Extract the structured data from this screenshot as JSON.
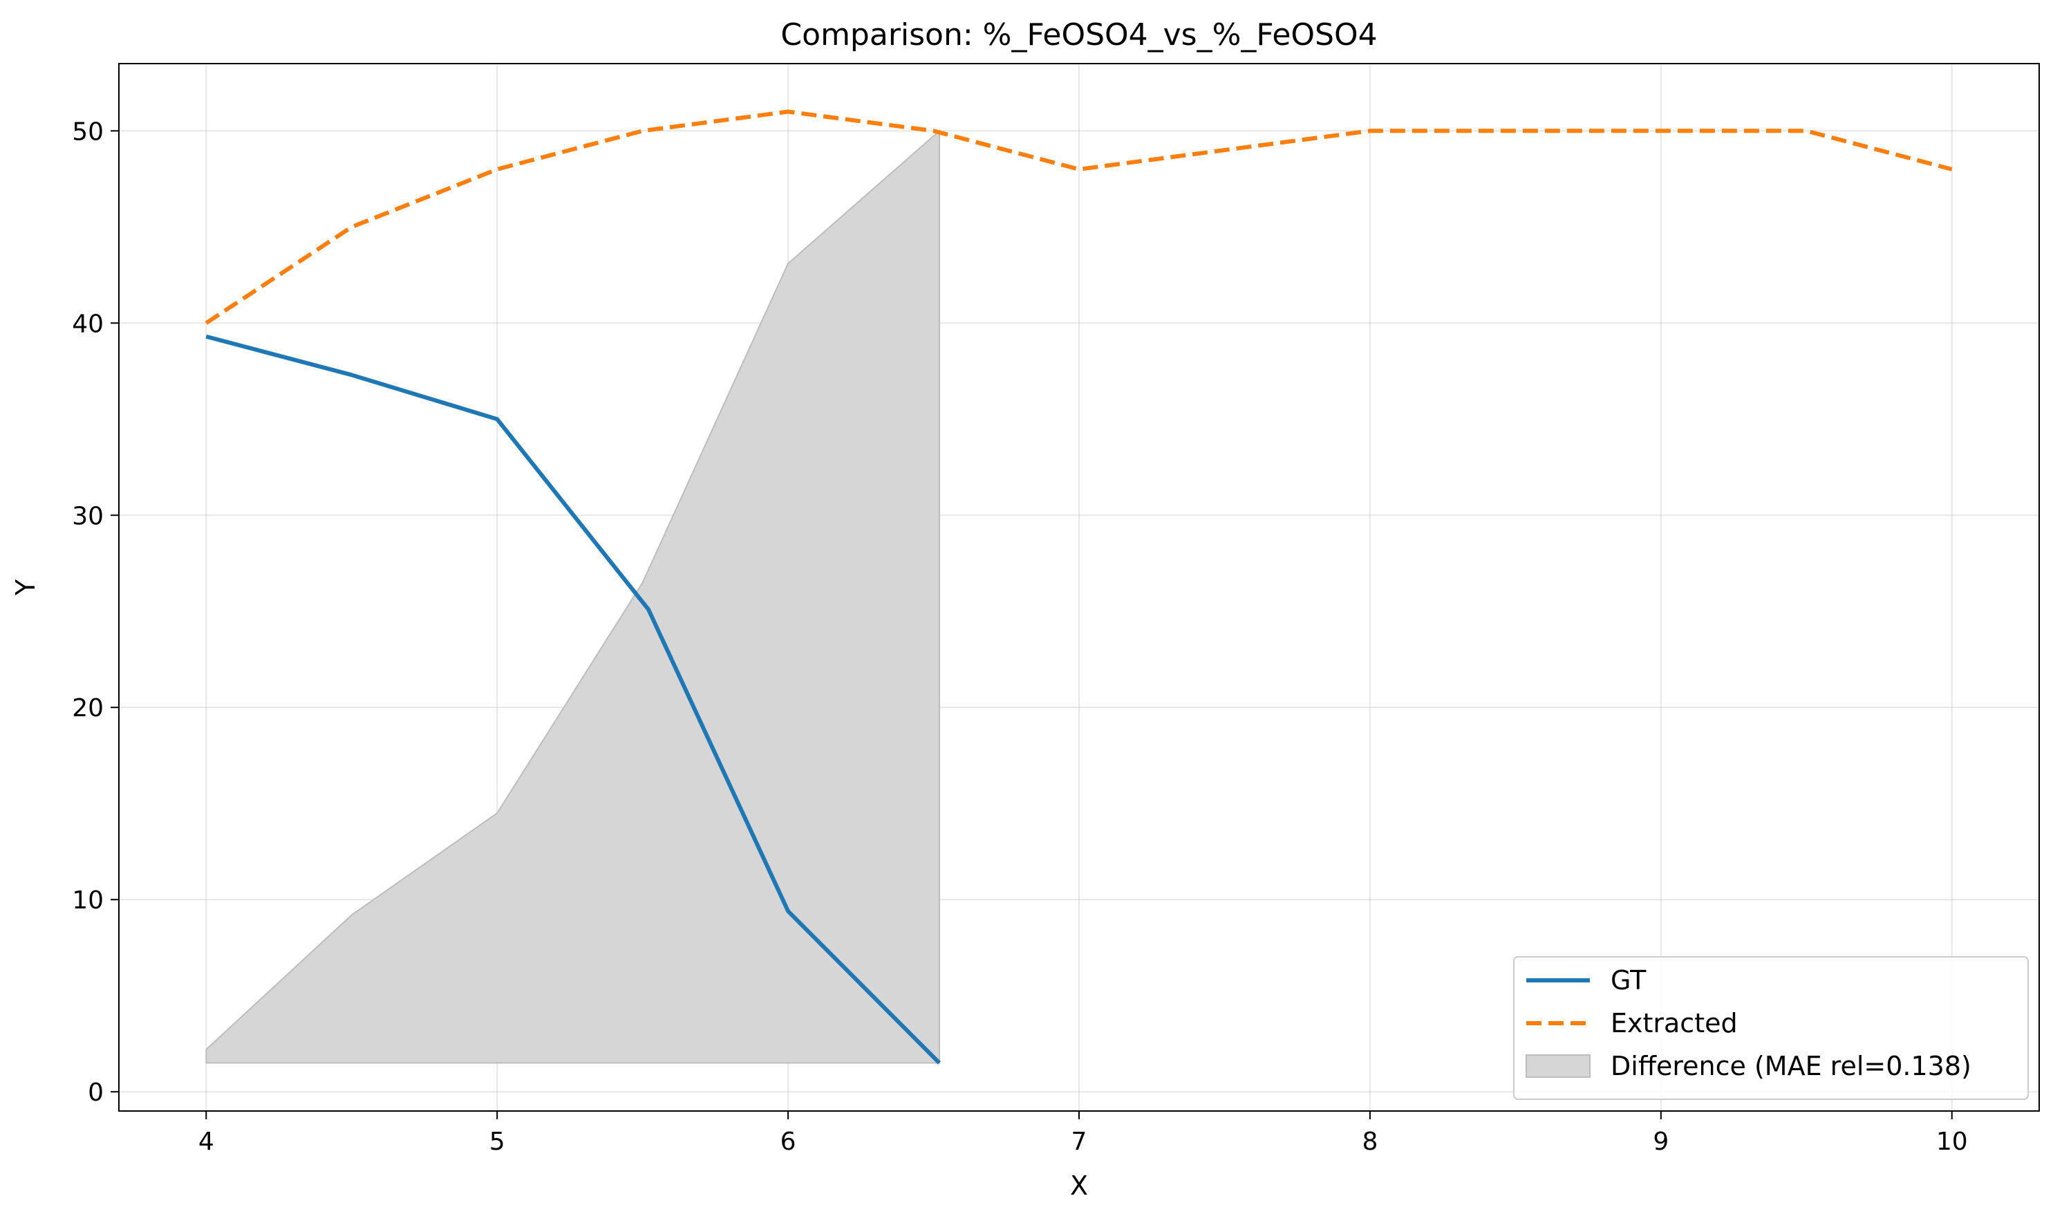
{
  "chart_data": {
    "type": "line",
    "title": "Comparison: %_FeOSO4_vs_%_FeOSO4",
    "xlabel": "X",
    "ylabel": "Y",
    "xlim": [
      3.7,
      10.3
    ],
    "ylim": [
      -1,
      53.5
    ],
    "xticks": [
      4,
      5,
      6,
      7,
      8,
      9,
      10
    ],
    "yticks": [
      0,
      10,
      20,
      30,
      40,
      50
    ],
    "grid": true,
    "legend_position": "lower-right",
    "series": [
      {
        "name": "GT",
        "style": "solid",
        "color": "#1f77b4",
        "x": [
          4,
          4.5,
          5,
          5.52,
          6,
          6.52
        ],
        "y": [
          39.3,
          37.3,
          35.0,
          25.1,
          9.4,
          1.5
        ]
      },
      {
        "name": "Extracted",
        "style": "dashed",
        "color": "#ff7f0e",
        "x": [
          4,
          4.5,
          5,
          5.5,
          6,
          6.5,
          7,
          8,
          9,
          9.5,
          10
        ],
        "y": [
          40.0,
          45.0,
          48.0,
          50.0,
          51.0,
          50.0,
          48.0,
          50.0,
          50.0,
          50.0,
          48.0
        ]
      }
    ],
    "fill": {
      "name": "Difference (MAE rel=0.138)",
      "color": "#d6d6d6",
      "edge_color": "#bdbdbd",
      "x": [
        4,
        4.5,
        5,
        5.5,
        6,
        6.52
      ],
      "upper": [
        2.2,
        9.2,
        14.5,
        26.5,
        43.1,
        50.0
      ],
      "lower": [
        1.5,
        1.5,
        1.5,
        1.5,
        1.5,
        1.5
      ]
    }
  }
}
